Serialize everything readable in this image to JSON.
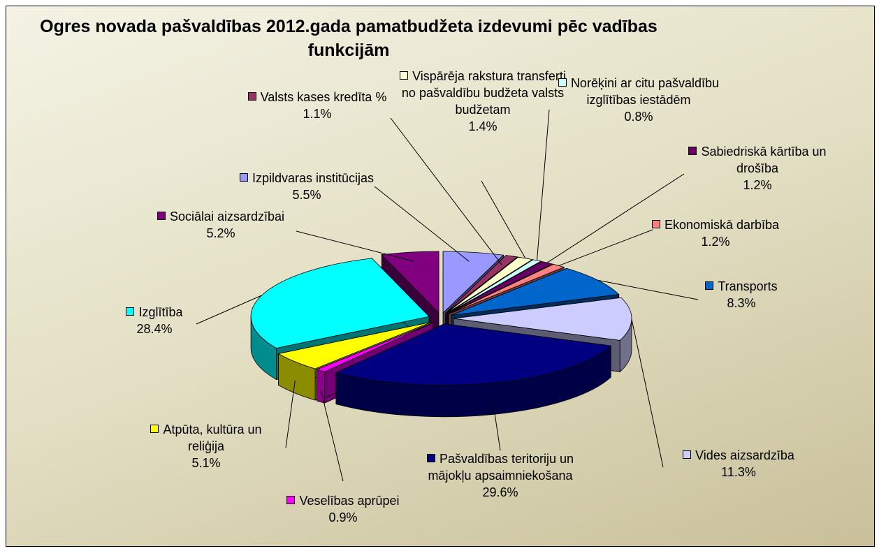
{
  "chart_data": {
    "type": "pie",
    "title": "Ogres novada pašvaldības 2012.gada pamatbudžeta izdevumi pēc vadības funkcijām",
    "categories": [
      "Izpildvaras institūcijas",
      "Valsts kases kredīta %",
      "Vispārēja rakstura transferti no pašvaldību budžeta valsts budžetam",
      "Norēķini ar citu pašvaldību izglītības iestādēm",
      "Sabiedriskā kārtība un drošība",
      "Ekonomiskā darbība",
      "Transports",
      "Vides aizsardzība",
      "Pašvaldības teritoriju un mājokļu apsaimniekošana",
      "Veselības aprūpei",
      "Atpūta, kultūra un reliģija",
      "Izglītība",
      "Sociālai aizsardzībai"
    ],
    "values": [
      5.5,
      1.1,
      1.4,
      0.8,
      1.2,
      1.2,
      8.3,
      11.3,
      29.6,
      0.9,
      5.1,
      28.4,
      5.2
    ],
    "value_labels": [
      "5.5%",
      "1.1%",
      "1.4%",
      "0.8%",
      "1.2%",
      "1.2%",
      "8.3%",
      "11.3%",
      "29.6%",
      "0.9%",
      "5.1%",
      "28.4%",
      "5.2%"
    ],
    "colors": [
      "#9999ff",
      "#993366",
      "#ffffcc",
      "#ccffff",
      "#660066",
      "#ff8080",
      "#0066cc",
      "#ccccff",
      "#000080",
      "#ff00ff",
      "#ffff00",
      "#00ffff",
      "#800080"
    ]
  }
}
